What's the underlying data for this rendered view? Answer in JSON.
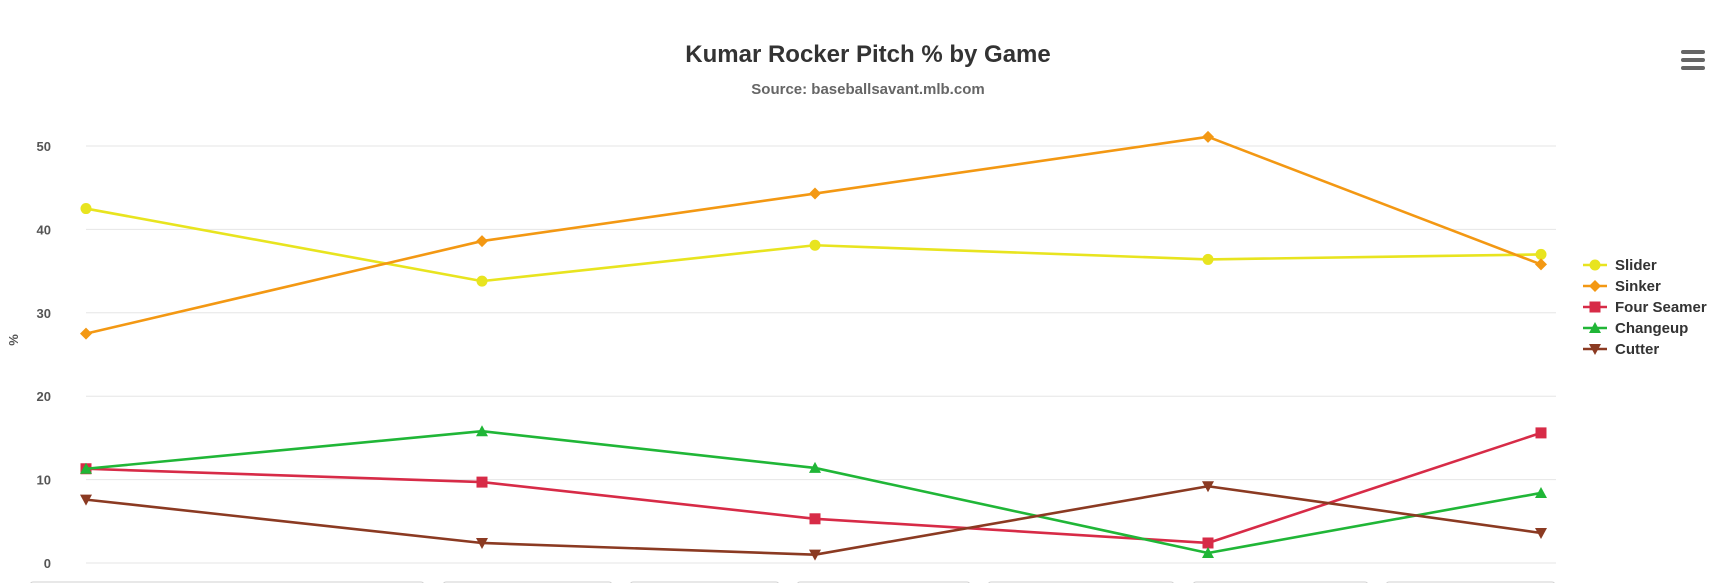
{
  "chart_data": {
    "type": "line",
    "title": "Kumar Rocker Pitch % by Game",
    "subtitle": "Source: baseballsavant.mlb.com",
    "xlabel": "",
    "ylabel": "%",
    "ylim": [
      0,
      55
    ],
    "yticks": [
      0,
      10,
      20,
      30,
      40,
      50
    ],
    "grid": true,
    "legend": "right",
    "x": [
      1,
      2,
      3,
      4,
      5
    ],
    "series": [
      {
        "name": "Slider",
        "color": "#e8e41f",
        "marker": "circle",
        "values": [
          42.5,
          33.8,
          38.1,
          36.4,
          37.0
        ]
      },
      {
        "name": "Sinker",
        "color": "#f39813",
        "marker": "diamond",
        "values": [
          27.5,
          38.6,
          44.3,
          51.1,
          35.8
        ]
      },
      {
        "name": "Four Seamer",
        "color": "#d72b47",
        "marker": "square",
        "values": [
          11.3,
          9.7,
          5.3,
          2.4,
          15.6
        ]
      },
      {
        "name": "Changeup",
        "color": "#20b637",
        "marker": "triangle",
        "values": [
          11.3,
          15.8,
          11.4,
          1.2,
          8.4
        ]
      },
      {
        "name": "Cutter",
        "color": "#8b3a22",
        "marker": "triangle-down",
        "values": [
          7.6,
          2.4,
          1.0,
          9.2,
          3.6
        ]
      }
    ]
  },
  "toolbar": {
    "menu_icon": "hamburger-menu-icon"
  }
}
